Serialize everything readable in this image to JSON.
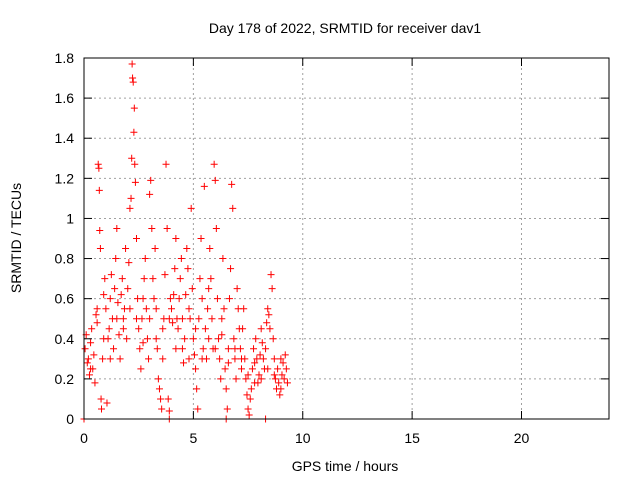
{
  "chart_data": {
    "type": "scatter",
    "title": "Day 178 of 2022, SRMTID for receiver dav1",
    "xlabel": "GPS time / hours",
    "ylabel": "SRMTID / TECUs",
    "xlim": [
      0,
      24
    ],
    "ylim": [
      0,
      1.8
    ],
    "xticks": [
      0,
      5,
      10,
      15,
      20
    ],
    "yticks": [
      0,
      0.2,
      0.4,
      0.6,
      0.8,
      1,
      1.2,
      1.4,
      1.6,
      1.8
    ],
    "xtick_labels": [
      "0",
      "5",
      "10",
      "15",
      "20"
    ],
    "ytick_labels": [
      "0",
      "0.2",
      "0.4",
      "0.6",
      "0.8",
      "1",
      "1.2",
      "1.4",
      "1.6",
      "1.8"
    ],
    "grid": true,
    "marker": "+",
    "color": "#ff0000",
    "series": [
      {
        "name": "dav1",
        "points": [
          [
            0.05,
            0.35
          ],
          [
            0.1,
            0.42
          ],
          [
            0.15,
            0.28
          ],
          [
            0.2,
            0.3
          ],
          [
            0.25,
            0.22
          ],
          [
            0.3,
            0.38
          ],
          [
            0.35,
            0.45
          ],
          [
            0.4,
            0.25
          ],
          [
            0.45,
            0.32
          ],
          [
            0.5,
            0.18
          ],
          [
            0.55,
            0.52
          ],
          [
            0.6,
            0.48
          ],
          [
            0.65,
            1.27
          ],
          [
            0.68,
            1.25
          ],
          [
            0.7,
            1.14
          ],
          [
            0.72,
            0.94
          ],
          [
            0.75,
            0.85
          ],
          [
            0.78,
            0.1
          ],
          [
            0.8,
            0.05
          ],
          [
            0.85,
            0.3
          ],
          [
            0.9,
            0.62
          ],
          [
            0.95,
            0.7
          ],
          [
            1.0,
            0.55
          ],
          [
            1.05,
            0.08
          ],
          [
            1.1,
            0.4
          ],
          [
            1.15,
            0.45
          ],
          [
            1.2,
            0.6
          ],
          [
            1.25,
            0.72
          ],
          [
            1.3,
            0.5
          ],
          [
            1.35,
            0.35
          ],
          [
            1.4,
            0.65
          ],
          [
            1.45,
            0.8
          ],
          [
            1.5,
            0.95
          ],
          [
            1.55,
            0.58
          ],
          [
            1.6,
            0.42
          ],
          [
            1.65,
            0.3
          ],
          [
            1.7,
            0.62
          ],
          [
            1.75,
            0.7
          ],
          [
            1.8,
            0.5
          ],
          [
            1.85,
            0.55
          ],
          [
            1.9,
            0.85
          ],
          [
            1.95,
            0.4
          ],
          [
            2.0,
            0.65
          ],
          [
            2.05,
            0.78
          ],
          [
            2.1,
            1.05
          ],
          [
            2.15,
            1.1
          ],
          [
            2.18,
            1.3
          ],
          [
            2.2,
            1.77
          ],
          [
            2.22,
            1.7
          ],
          [
            2.25,
            1.68
          ],
          [
            2.28,
            1.43
          ],
          [
            2.3,
            1.55
          ],
          [
            2.32,
            1.27
          ],
          [
            2.35,
            1.18
          ],
          [
            2.4,
            0.9
          ],
          [
            2.45,
            0.6
          ],
          [
            2.5,
            0.45
          ],
          [
            2.55,
            0.35
          ],
          [
            2.6,
            0.25
          ],
          [
            2.65,
            0.5
          ],
          [
            2.7,
            0.6
          ],
          [
            2.75,
            0.7
          ],
          [
            2.8,
            0.8
          ],
          [
            2.85,
            0.55
          ],
          [
            2.9,
            0.4
          ],
          [
            2.95,
            0.3
          ],
          [
            3.0,
            1.12
          ],
          [
            3.05,
            1.19
          ],
          [
            3.1,
            0.95
          ],
          [
            3.15,
            0.7
          ],
          [
            3.2,
            0.6
          ],
          [
            3.25,
            0.85
          ],
          [
            3.3,
            0.4
          ],
          [
            3.35,
            0.35
          ],
          [
            3.4,
            0.2
          ],
          [
            3.45,
            0.15
          ],
          [
            3.5,
            0.1
          ],
          [
            3.55,
            0.05
          ],
          [
            3.6,
            0.3
          ],
          [
            3.65,
            0.5
          ],
          [
            3.7,
            0.72
          ],
          [
            3.75,
            1.27
          ],
          [
            3.8,
            0.95
          ],
          [
            3.85,
            0.1
          ],
          [
            3.9,
            0.04
          ],
          [
            3.95,
            0.6
          ],
          [
            4.0,
            0.55
          ],
          [
            4.05,
            0.48
          ],
          [
            4.1,
            0.62
          ],
          [
            4.15,
            0.75
          ],
          [
            4.2,
            0.9
          ],
          [
            4.25,
            0.5
          ],
          [
            4.3,
            0.45
          ],
          [
            4.35,
            0.6
          ],
          [
            4.4,
            0.7
          ],
          [
            4.45,
            0.8
          ],
          [
            4.5,
            0.35
          ],
          [
            4.55,
            0.28
          ],
          [
            4.6,
            0.4
          ],
          [
            4.65,
            0.62
          ],
          [
            4.7,
            0.85
          ],
          [
            4.75,
            0.75
          ],
          [
            4.8,
            0.55
          ],
          [
            4.85,
            0.5
          ],
          [
            4.9,
            1.05
          ],
          [
            4.95,
            0.65
          ],
          [
            5.0,
            0.4
          ],
          [
            5.05,
            0.32
          ],
          [
            5.1,
            0.25
          ],
          [
            5.15,
            0.15
          ],
          [
            5.2,
            0.05
          ],
          [
            5.25,
            0.5
          ],
          [
            5.3,
            0.7
          ],
          [
            5.35,
            0.9
          ],
          [
            5.4,
            0.6
          ],
          [
            5.45,
            0.35
          ],
          [
            5.5,
            1.16
          ],
          [
            5.55,
            0.45
          ],
          [
            5.6,
            0.3
          ],
          [
            5.65,
            0.55
          ],
          [
            5.7,
            0.65
          ],
          [
            5.75,
            0.85
          ],
          [
            5.8,
            0.7
          ],
          [
            5.85,
            0.5
          ],
          [
            5.9,
            0.35
          ],
          [
            5.95,
            1.27
          ],
          [
            6.0,
            1.19
          ],
          [
            6.05,
            0.95
          ],
          [
            6.1,
            0.6
          ],
          [
            6.15,
            0.4
          ],
          [
            6.2,
            0.3
          ],
          [
            6.25,
            0.2
          ],
          [
            6.3,
            0.5
          ],
          [
            6.35,
            0.8
          ],
          [
            6.4,
            0.55
          ],
          [
            6.45,
            0.25
          ],
          [
            6.5,
            0.15
          ],
          [
            6.55,
            0.05
          ],
          [
            6.6,
            0.35
          ],
          [
            6.65,
            0.6
          ],
          [
            6.7,
            0.75
          ],
          [
            6.75,
            1.17
          ],
          [
            6.8,
            1.05
          ],
          [
            6.85,
            0.4
          ],
          [
            6.9,
            0.3
          ],
          [
            6.95,
            0.2
          ],
          [
            7.0,
            0.65
          ],
          [
            7.05,
            0.55
          ],
          [
            7.1,
            0.45
          ],
          [
            7.15,
            0.35
          ],
          [
            7.2,
            0.25
          ],
          [
            7.25,
            0.45
          ],
          [
            7.3,
            0.55
          ],
          [
            7.35,
            0.3
          ],
          [
            7.4,
            0.2
          ],
          [
            7.45,
            0.12
          ],
          [
            7.5,
            0.05
          ],
          [
            7.55,
            0.02
          ],
          [
            7.6,
            0.1
          ],
          [
            7.65,
            0.15
          ],
          [
            7.7,
            0.25
          ],
          [
            7.75,
            0.35
          ],
          [
            7.8,
            0.28
          ],
          [
            7.85,
            0.4
          ],
          [
            7.9,
            0.3
          ],
          [
            7.95,
            0.18
          ],
          [
            8.0,
            0.22
          ],
          [
            8.05,
            0.32
          ],
          [
            8.1,
            0.45
          ],
          [
            8.15,
            0.38
          ],
          [
            8.2,
            0.3
          ],
          [
            8.25,
            0.25
          ],
          [
            8.3,
            0.35
          ],
          [
            8.35,
            0.48
          ],
          [
            8.4,
            0.55
          ],
          [
            8.45,
            0.52
          ],
          [
            8.5,
            0.45
          ],
          [
            8.55,
            0.72
          ],
          [
            8.6,
            0.65
          ],
          [
            8.65,
            0.4
          ],
          [
            8.7,
            0.3
          ],
          [
            8.75,
            0.2
          ],
          [
            8.8,
            0.15
          ],
          [
            8.85,
            0.25
          ],
          [
            8.9,
            0.18
          ],
          [
            8.95,
            0.12
          ],
          [
            9.0,
            0.3
          ],
          [
            9.05,
            0.22
          ],
          [
            9.1,
            0.28
          ],
          [
            9.15,
            0.2
          ],
          [
            9.2,
            0.32
          ],
          [
            9.25,
            0.25
          ],
          [
            9.3,
            0.18
          ],
          [
            0.3,
            0.25
          ],
          [
            0.6,
            0.55
          ],
          [
            0.9,
            0.4
          ],
          [
            1.2,
            0.3
          ],
          [
            1.5,
            0.5
          ],
          [
            1.8,
            0.45
          ],
          [
            2.1,
            0.55
          ],
          [
            2.4,
            0.5
          ],
          [
            2.7,
            0.38
          ],
          [
            3.0,
            0.5
          ],
          [
            3.3,
            0.55
          ],
          [
            3.6,
            0.45
          ],
          [
            3.9,
            0.5
          ],
          [
            4.2,
            0.35
          ],
          [
            4.5,
            0.5
          ],
          [
            4.8,
            0.3
          ],
          [
            5.1,
            0.45
          ],
          [
            5.4,
            0.3
          ],
          [
            5.7,
            0.4
          ],
          [
            6.0,
            0.35
          ],
          [
            6.3,
            0.42
          ],
          [
            6.6,
            0.28
          ],
          [
            6.9,
            0.35
          ],
          [
            7.2,
            0.3
          ],
          [
            7.5,
            0.22
          ],
          [
            7.8,
            0.18
          ],
          [
            8.1,
            0.2
          ],
          [
            8.4,
            0.25
          ],
          [
            8.7,
            0.22
          ],
          [
            9.0,
            0.15
          ],
          [
            0.0,
            0.0
          ],
          [
            3.9,
            0.0
          ],
          [
            6.5,
            0.0
          ],
          [
            8.3,
            0.0
          ]
        ]
      }
    ]
  }
}
